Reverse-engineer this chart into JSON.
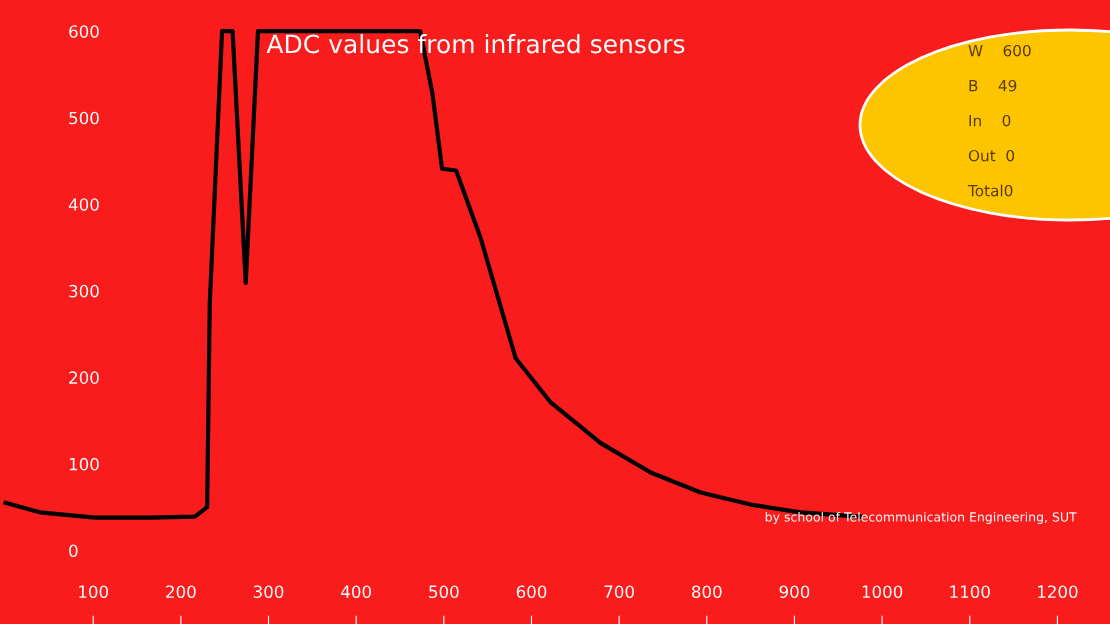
{
  "chart_data": {
    "type": "line",
    "title": "ADC values from infrared sensors",
    "x": [
      0,
      39,
      102,
      165,
      216,
      230,
      233,
      247,
      259,
      274,
      288,
      473,
      487,
      498,
      514,
      542,
      582,
      622,
      679,
      736,
      793,
      850,
      907,
      976
    ],
    "series": [
      {
        "color": "#000000",
        "values": [
          55,
          44,
          38,
          38,
          39,
          50,
          286,
          600,
          600,
          309,
          600,
          600,
          528,
          441,
          439,
          361,
          222,
          171,
          124,
          90,
          67,
          53,
          44,
          39
        ]
      }
    ],
    "xlim": [
      0,
      1260
    ],
    "ylim": [
      -85,
      600
    ],
    "xticks": [
      100,
      200,
      300,
      400,
      500,
      600,
      700,
      800,
      900,
      1000,
      1100,
      1200
    ],
    "yticks": [
      0,
      100,
      200,
      300,
      400,
      500,
      600
    ],
    "grid": false,
    "legend": false,
    "marker": "none",
    "line_style": "solid",
    "annotations": [
      "W    600",
      "B    49",
      "In    0",
      "Out  0",
      "Total0",
      "by school of Telecommunication Engineering, SUT"
    ]
  }
}
